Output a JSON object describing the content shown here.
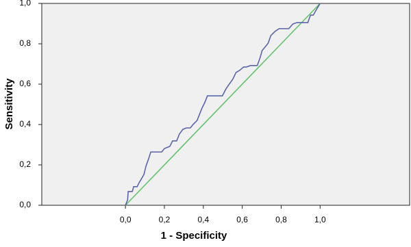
{
  "chart_data": {
    "type": "line",
    "x_label": "1 - Specificity",
    "y_label": "Sensitivity",
    "xlim": [
      -0.43,
      1.46
    ],
    "ylim": [
      0,
      1
    ],
    "xticks": [
      {
        "value": 0,
        "label": "0,0"
      },
      {
        "value": 0.2,
        "label": "0,2"
      },
      {
        "value": 0.4,
        "label": "0,4"
      },
      {
        "value": 0.6,
        "label": "0,6"
      },
      {
        "value": 0.8,
        "label": "0,8"
      },
      {
        "value": 1,
        "label": "1,0"
      }
    ],
    "yticks": [
      {
        "value": 0,
        "label": "0,0"
      },
      {
        "value": 0.2,
        "label": "0,2"
      },
      {
        "value": 0.4,
        "label": "0,4"
      },
      {
        "value": 0.6,
        "label": "0,6"
      },
      {
        "value": 0.8,
        "label": "0,8"
      },
      {
        "value": 1,
        "label": "1,0"
      }
    ],
    "background": "#f0f0f0",
    "series": [
      {
        "color": "#5a63ad",
        "x": [
          0,
          0.011,
          0.014,
          0.035,
          0.042,
          0.06,
          0.07,
          0.081,
          0.095,
          0.105,
          0.119,
          0.13,
          0.158,
          0.186,
          0.2,
          0.228,
          0.242,
          0.263,
          0.277,
          0.295,
          0.312,
          0.333,
          0.347,
          0.368,
          0.382,
          0.393,
          0.407,
          0.421,
          0.463,
          0.498,
          0.516,
          0.533,
          0.551,
          0.568,
          0.586,
          0.607,
          0.621,
          0.642,
          0.677,
          0.691,
          0.702,
          0.719,
          0.733,
          0.747,
          0.768,
          0.789,
          0.839,
          0.86,
          0.881,
          0.937,
          0.944,
          0.951,
          0.965,
          0.979,
          1
        ],
        "values": [
          0,
          0.027,
          0.068,
          0.068,
          0.092,
          0.092,
          0.112,
          0.129,
          0.153,
          0.193,
          0.231,
          0.264,
          0.264,
          0.264,
          0.281,
          0.292,
          0.319,
          0.319,
          0.353,
          0.376,
          0.383,
          0.383,
          0.4,
          0.42,
          0.454,
          0.481,
          0.508,
          0.542,
          0.542,
          0.542,
          0.576,
          0.6,
          0.624,
          0.658,
          0.668,
          0.685,
          0.685,
          0.692,
          0.692,
          0.729,
          0.766,
          0.786,
          0.803,
          0.841,
          0.861,
          0.875,
          0.875,
          0.898,
          0.905,
          0.905,
          0.925,
          0.942,
          0.942,
          0.966,
          1
        ]
      },
      {
        "color": "#5fc46a",
        "x": [
          0,
          1
        ],
        "values": [
          0,
          1
        ]
      }
    ]
  }
}
